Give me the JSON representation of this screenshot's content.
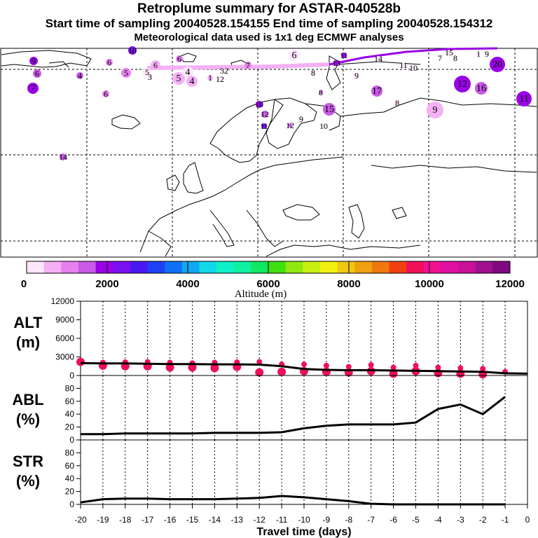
{
  "header": {
    "title": "Retroplume summary for ASTAR-040528b",
    "sampling": "Start time of sampling 20040528.154155      End time of sampling 20040528.154312",
    "met": "Meteorological data used is 1x1 deg ECMWF analyses"
  },
  "colorbar": {
    "ticks": [
      "0",
      "2000",
      "4000",
      "6000",
      "8000",
      "10000",
      "12000"
    ],
    "label": "Altitude  (m)",
    "colors": [
      "#ffe6ff",
      "#f5b0f5",
      "#e880f0",
      "#c85ae6",
      "#9a00e6",
      "#7a10f0",
      "#4a18f0",
      "#2040f5",
      "#1070f5",
      "#10a8f0",
      "#10d8e8",
      "#10f0c8",
      "#10f0a0",
      "#10e860",
      "#40e010",
      "#90e810",
      "#c8f010",
      "#f0f010",
      "#f0c810",
      "#f0a010",
      "#f07810",
      "#f04010",
      "#f0105a",
      "#f01090",
      "#e010a0",
      "#c81098",
      "#a01090",
      "#800880"
    ]
  },
  "map": {
    "labels": [
      {
        "t": "9",
        "c": "#9a00e6"
      },
      {
        "t": "6",
        "c": "#c85ae6"
      },
      {
        "t": "7",
        "c": "#9a00e6"
      },
      {
        "t": "4",
        "c": "#c85ae6"
      },
      {
        "t": "6",
        "c": "#e880f0"
      },
      {
        "t": "5",
        "c": "#e880f0"
      },
      {
        "t": "6",
        "c": "#e880f0"
      },
      {
        "t": "14",
        "c": "#c85ae6"
      },
      {
        "t": "10",
        "c": "#7a10f0"
      },
      {
        "t": "6",
        "c": "#e880f0"
      },
      {
        "t": "6",
        "c": "#f5b0f5"
      },
      {
        "t": "5",
        "c": "#ffe6ff"
      },
      {
        "t": "3",
        "c": "#ffe6ff"
      },
      {
        "t": "5",
        "c": "#f5b0f5"
      },
      {
        "t": "4",
        "c": "#ffe6ff"
      },
      {
        "t": "4",
        "c": "#f5b0f5"
      },
      {
        "t": "1",
        "c": "#f5b0f5"
      },
      {
        "t": "12",
        "c": "#ffe6ff"
      },
      {
        "t": "32",
        "c": "#ffe6ff"
      },
      {
        "t": "7",
        "c": "#e880f0"
      },
      {
        "t": "6",
        "c": "#ffe6ff"
      },
      {
        "t": "8",
        "c": "#ffe6ff"
      },
      {
        "t": "12",
        "c": "#c85ae6"
      },
      {
        "t": "11",
        "c": "#9a00e6"
      },
      {
        "t": "9",
        "c": "#ffe6ff"
      },
      {
        "t": "14",
        "c": "#ffe6ff"
      },
      {
        "t": "11",
        "c": "#ffe6ff"
      },
      {
        "t": "10",
        "c": "#ffe6ff"
      },
      {
        "t": "15",
        "c": "#ffe6ff"
      },
      {
        "t": "7",
        "c": "#ffe6ff"
      },
      {
        "t": "8",
        "c": "#ffe6ff"
      },
      {
        "t": "1",
        "c": "#ffe6ff"
      },
      {
        "t": "9",
        "c": "#ffe6ff"
      },
      {
        "t": "20",
        "c": "#9a00e6"
      },
      {
        "t": "17",
        "c": "#c85ae6"
      },
      {
        "t": "12",
        "c": "#9a00e6"
      },
      {
        "t": "16",
        "c": "#c85ae6"
      },
      {
        "t": "8",
        "c": "#ffe6ff"
      },
      {
        "t": "9",
        "c": "#f5b0f5"
      },
      {
        "t": "11",
        "c": "#9a00e6"
      },
      {
        "t": "8",
        "c": "#e880f0"
      },
      {
        "t": "10",
        "c": "#9a00e6"
      },
      {
        "t": "15",
        "c": "#c85ae6"
      },
      {
        "t": "11",
        "c": "#7a10f0"
      },
      {
        "t": "12",
        "c": "#c85ae6"
      },
      {
        "t": "9",
        "c": "#ffe6ff"
      },
      {
        "t": "10",
        "c": "#ffe6ff"
      },
      {
        "t": "13",
        "c": "#9a00e6"
      }
    ]
  },
  "chart_data": [
    {
      "type": "scatter",
      "name": "ALT",
      "ylabel": "ALT\n(m)",
      "ylabel_lines": [
        "ALT",
        "(m)"
      ],
      "ylim": [
        0,
        12000
      ],
      "yticks": [
        "0",
        "3000",
        "6000",
        "9000",
        "12000"
      ],
      "xlim": [
        -20,
        0
      ],
      "x": [
        -20,
        -19,
        -18,
        -17,
        -16,
        -15,
        -14,
        -13,
        -12,
        -11,
        -10,
        -9,
        -8,
        -7,
        -6,
        -5,
        -4,
        -3,
        -2,
        -1,
        0
      ],
      "series": [
        {
          "name": "mean altitude",
          "values": [
            2000,
            1950,
            1950,
            1900,
            1850,
            1850,
            1800,
            1800,
            1750,
            1500,
            1050,
            900,
            850,
            850,
            800,
            750,
            700,
            650,
            600,
            350,
            300
          ]
        }
      ],
      "points": [
        {
          "x": -20,
          "y": 2200
        },
        {
          "x": -19,
          "y": 2100
        },
        {
          "x": -19,
          "y": 1600
        },
        {
          "x": -18,
          "y": 2150
        },
        {
          "x": -18,
          "y": 1500
        },
        {
          "x": -17,
          "y": 2200
        },
        {
          "x": -17,
          "y": 1500
        },
        {
          "x": -16,
          "y": 2100
        },
        {
          "x": -16,
          "y": 1300
        },
        {
          "x": -15,
          "y": 2000
        },
        {
          "x": -15,
          "y": 1300
        },
        {
          "x": -14,
          "y": 2100
        },
        {
          "x": -14,
          "y": 1200
        },
        {
          "x": -13,
          "y": 2150
        },
        {
          "x": -13,
          "y": 1400
        },
        {
          "x": -12,
          "y": 2200
        },
        {
          "x": -12,
          "y": 500
        },
        {
          "x": -11,
          "y": 1800
        },
        {
          "x": -11,
          "y": 600
        },
        {
          "x": -10,
          "y": 1800
        },
        {
          "x": -10,
          "y": 700
        },
        {
          "x": -9,
          "y": 1600
        },
        {
          "x": -9,
          "y": 600
        },
        {
          "x": -8,
          "y": 1400
        },
        {
          "x": -8,
          "y": 500
        },
        {
          "x": -7,
          "y": 1700
        },
        {
          "x": -7,
          "y": 700
        },
        {
          "x": -6,
          "y": 1300
        },
        {
          "x": -6,
          "y": 300
        },
        {
          "x": -5,
          "y": 1600
        },
        {
          "x": -5,
          "y": 700
        },
        {
          "x": -4,
          "y": 1300
        },
        {
          "x": -4,
          "y": 400
        },
        {
          "x": -3,
          "y": 1200
        },
        {
          "x": -3,
          "y": 300
        },
        {
          "x": -2,
          "y": 1100
        },
        {
          "x": -2,
          "y": 200
        },
        {
          "x": -1,
          "y": 600
        }
      ]
    },
    {
      "type": "line",
      "name": "ABL",
      "ylabel": "ABL\n(%)",
      "ylabel_lines": [
        "ABL",
        "(%)"
      ],
      "ylim": [
        0,
        100
      ],
      "yticks": [
        "0",
        "20",
        "40",
        "60",
        "80"
      ],
      "xlim": [
        -20,
        0
      ],
      "x": [
        -20,
        -19,
        -18,
        -17,
        -16,
        -15,
        -14,
        -13,
        -12,
        -11,
        -10,
        -9,
        -8,
        -7,
        -6,
        -5,
        -4,
        -3,
        -2,
        -1
      ],
      "series": [
        {
          "name": "ABL fraction",
          "values": [
            9,
            9,
            10,
            10,
            10,
            10,
            11,
            11,
            11,
            12,
            18,
            22,
            24,
            24,
            24,
            27,
            48,
            55,
            40,
            67
          ]
        }
      ]
    },
    {
      "type": "line",
      "name": "STR",
      "ylabel": "STR\n(%)",
      "ylabel_lines": [
        "STR",
        "(%)"
      ],
      "ylim": [
        0,
        100
      ],
      "yticks": [
        "0",
        "20",
        "40",
        "60",
        "80"
      ],
      "xlim": [
        -20,
        0
      ],
      "x": [
        -20,
        -19,
        -18,
        -17,
        -16,
        -15,
        -14,
        -13,
        -12,
        -11,
        -10,
        -9,
        -8,
        -7,
        -6,
        -5,
        -4,
        -3,
        -2,
        -1
      ],
      "series": [
        {
          "name": "stratosphere fraction",
          "values": [
            3,
            8,
            9,
            9,
            8,
            8,
            8,
            9,
            10,
            13,
            11,
            8,
            5,
            1,
            0,
            0,
            0,
            0,
            0,
            0
          ]
        }
      ],
      "xticks": [
        "-20",
        "-19",
        "-18",
        "-17",
        "-16",
        "-15",
        "-14",
        "-13",
        "-12",
        "-11",
        "-10",
        "-9",
        "-8",
        "-7",
        "-6",
        "-5",
        "-4",
        "-3",
        "-2",
        "-1",
        "0"
      ],
      "xlabel": "Travel time (days)"
    }
  ]
}
